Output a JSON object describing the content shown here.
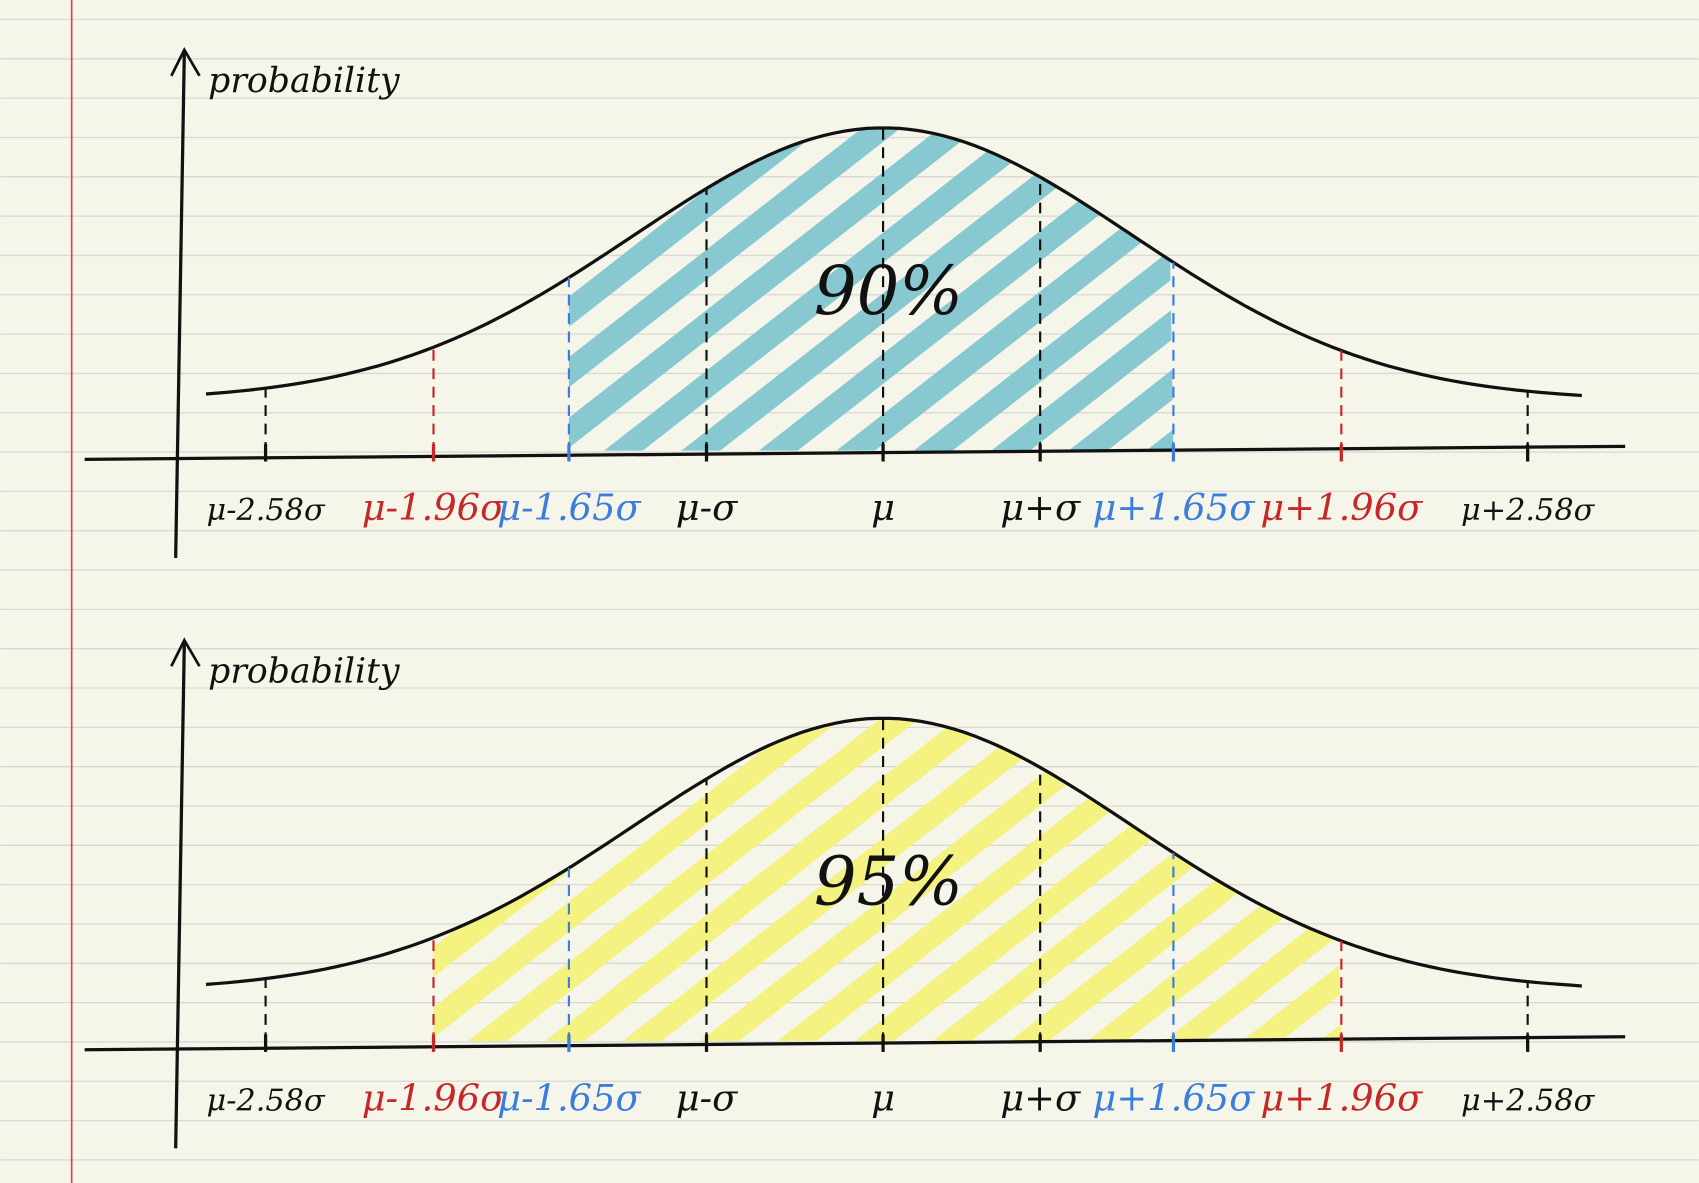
{
  "panels": [
    {
      "y_axis_label": "probability",
      "x_tick_labels": [
        "μ-2.58σ",
        "μ-1.96σ",
        "μ-1.65σ",
        "μ-σ",
        "μ",
        "μ+σ",
        "μ+1.65σ",
        "μ+1.96σ",
        "μ+2.58σ"
      ],
      "area_label": "90%"
    },
    {
      "y_axis_label": "probability",
      "x_tick_labels": [
        "μ-2.58σ",
        "μ-1.96σ",
        "μ-1.65σ",
        "μ-σ",
        "μ",
        "μ+σ",
        "μ+1.65σ",
        "μ+1.96σ",
        "μ+2.58σ"
      ],
      "area_label": "95%"
    }
  ]
}
